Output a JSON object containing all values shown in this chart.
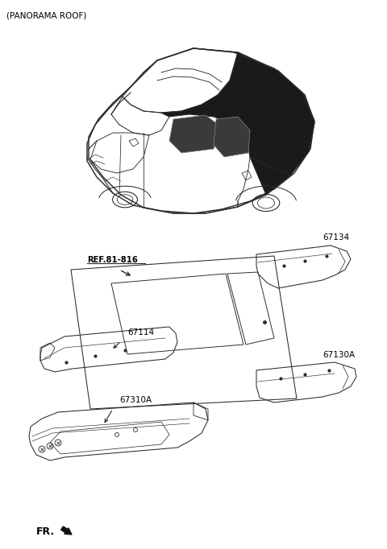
{
  "title": "(PANORAMA ROOF)",
  "bg_color": "#ffffff",
  "text_color": "#000000",
  "line_color": "#2a2a2a",
  "figsize": [
    4.8,
    6.82
  ],
  "dpi": 100,
  "labels": {
    "ref": "REF.81-816",
    "p67134": "67134",
    "p67114": "67114",
    "p67130a": "67130A",
    "p67310a": "67310A",
    "fr": "FR."
  }
}
